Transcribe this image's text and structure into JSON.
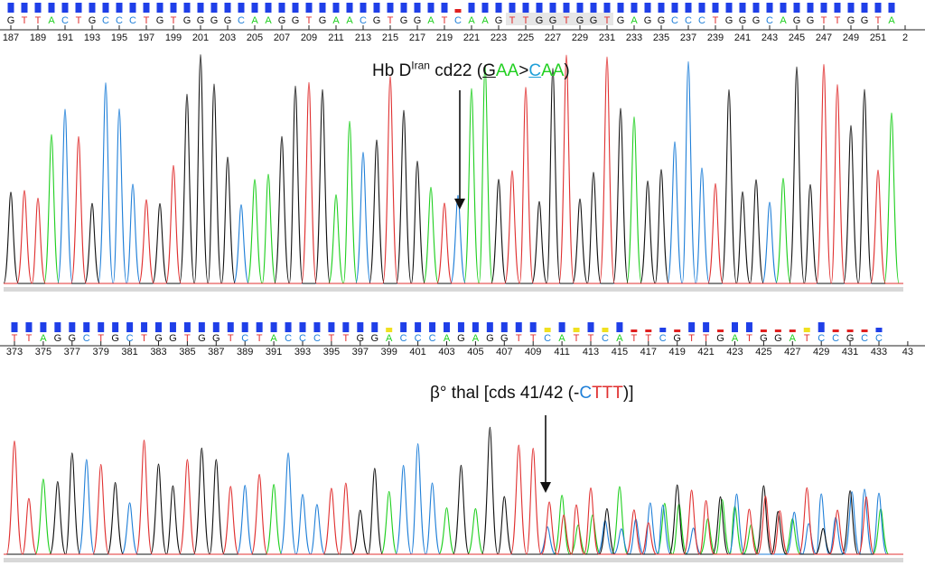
{
  "panels": [
    {
      "bases": "GTTACTGCCCTGTGGGGCAAGGTGAACGTGGATCAAGTTGGTGGTGAGGCCCTGGGCAGGTTGGTA",
      "start": 187,
      "tick_labels": [
        "187",
        "189",
        "191",
        "193",
        "195",
        "197",
        "199",
        "201",
        "203",
        "205",
        "207",
        "209",
        "211",
        "213",
        "215",
        "217",
        "219",
        "221",
        "223",
        "225",
        "227",
        "229",
        "231",
        "233",
        "235",
        "237",
        "239",
        "241",
        "243",
        "245",
        "247",
        "249",
        "251",
        "2"
      ],
      "low_quality_positions": [
        220
      ],
      "highlight": {
        "from": 224,
        "to": 231
      },
      "annotation": {
        "prefix": "Hb D",
        "sup": "Iran",
        "middle": " cd22 (",
        "c1": "G",
        "c2": "AA",
        "gt": ">",
        "c3": "C",
        "c4": "AA",
        "end": ")"
      }
    },
    {
      "bases": "TTAGGCTGCTGGTGGTCTACCCTTGGACCCAGAGGTTCATTCATTCGTTGATGGATCCGCC",
      "start": 373,
      "tick_labels": [
        "373",
        "375",
        "377",
        "379",
        "381",
        "383",
        "385",
        "387",
        "389",
        "391",
        "393",
        "395",
        "397",
        "399",
        "401",
        "403",
        "405",
        "407",
        "409",
        "411",
        "413",
        "415",
        "417",
        "419",
        "421",
        "423",
        "425",
        "427",
        "429",
        "431",
        "433",
        "43"
      ],
      "annotation": {
        "prefix": "β° thal [cds 41/42 (-",
        "c1": "C",
        "c2": "TTT",
        "end": ")]"
      }
    }
  ],
  "colors": {
    "A": "#1fcf1f",
    "C": "#1f7fd8",
    "G": "#111111",
    "T": "#e03030",
    "quality_high": "#1f3fe8",
    "quality_mid": "#f0e020",
    "quality_low": "#e02020"
  }
}
